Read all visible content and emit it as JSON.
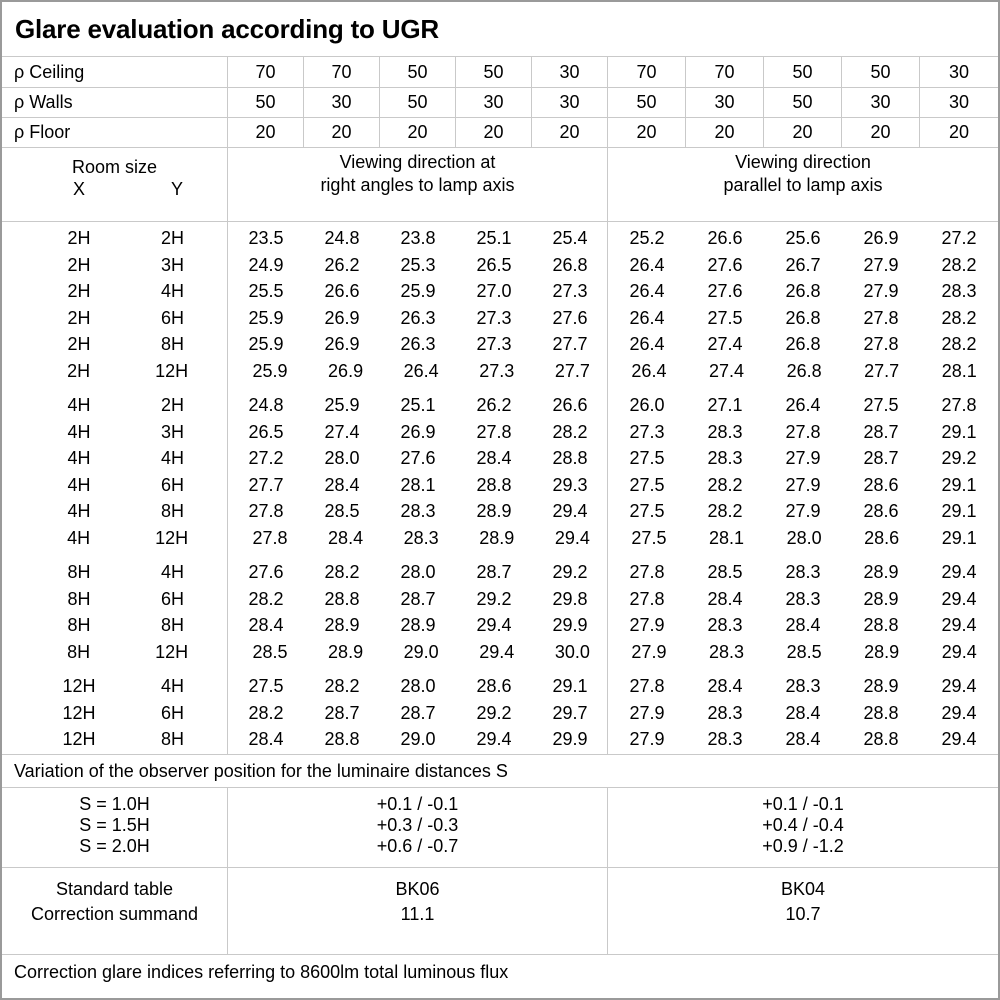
{
  "title": "Glare evaluation according to UGR",
  "reflectance": {
    "rows": [
      {
        "label": "ρ Ceiling",
        "values": [
          "70",
          "70",
          "50",
          "50",
          "30",
          "70",
          "70",
          "50",
          "50",
          "30"
        ]
      },
      {
        "label": "ρ Walls",
        "values": [
          "50",
          "30",
          "50",
          "30",
          "30",
          "50",
          "30",
          "50",
          "30",
          "30"
        ]
      },
      {
        "label": "ρ Floor",
        "values": [
          "20",
          "20",
          "20",
          "20",
          "20",
          "20",
          "20",
          "20",
          "20",
          "20"
        ]
      }
    ]
  },
  "room_header": {
    "room_size": "Room size",
    "x": "X",
    "y": "Y",
    "left_title_line1": "Viewing direction at",
    "left_title_line2": "right angles to lamp axis",
    "right_title_line1": "Viewing direction",
    "right_title_line2": "parallel to lamp axis"
  },
  "ugr_blocks": [
    {
      "rows": [
        {
          "x": "2H",
          "y": "2H",
          "left": [
            "23.5",
            "24.8",
            "23.8",
            "25.1",
            "25.4"
          ],
          "right": [
            "25.2",
            "26.6",
            "25.6",
            "26.9",
            "27.2"
          ]
        },
        {
          "x": "2H",
          "y": "3H",
          "left": [
            "24.9",
            "26.2",
            "25.3",
            "26.5",
            "26.8"
          ],
          "right": [
            "26.4",
            "27.6",
            "26.7",
            "27.9",
            "28.2"
          ]
        },
        {
          "x": "2H",
          "y": "4H",
          "left": [
            "25.5",
            "26.6",
            "25.9",
            "27.0",
            "27.3"
          ],
          "right": [
            "26.4",
            "27.6",
            "26.8",
            "27.9",
            "28.3"
          ]
        },
        {
          "x": "2H",
          "y": "6H",
          "left": [
            "25.9",
            "26.9",
            "26.3",
            "27.3",
            "27.6"
          ],
          "right": [
            "26.4",
            "27.5",
            "26.8",
            "27.8",
            "28.2"
          ]
        },
        {
          "x": "2H",
          "y": "8H",
          "left": [
            "25.9",
            "26.9",
            "26.3",
            "27.3",
            "27.7"
          ],
          "right": [
            "26.4",
            "27.4",
            "26.8",
            "27.8",
            "28.2"
          ]
        },
        {
          "x": "2H",
          "y": "12H",
          "left": [
            "25.9",
            "26.9",
            "26.4",
            "27.3",
            "27.7"
          ],
          "right": [
            "26.4",
            "27.4",
            "26.8",
            "27.7",
            "28.1"
          ]
        }
      ]
    },
    {
      "rows": [
        {
          "x": "4H",
          "y": "2H",
          "left": [
            "24.8",
            "25.9",
            "25.1",
            "26.2",
            "26.6"
          ],
          "right": [
            "26.0",
            "27.1",
            "26.4",
            "27.5",
            "27.8"
          ]
        },
        {
          "x": "4H",
          "y": "3H",
          "left": [
            "26.5",
            "27.4",
            "26.9",
            "27.8",
            "28.2"
          ],
          "right": [
            "27.3",
            "28.3",
            "27.8",
            "28.7",
            "29.1"
          ]
        },
        {
          "x": "4H",
          "y": "4H",
          "left": [
            "27.2",
            "28.0",
            "27.6",
            "28.4",
            "28.8"
          ],
          "right": [
            "27.5",
            "28.3",
            "27.9",
            "28.7",
            "29.2"
          ]
        },
        {
          "x": "4H",
          "y": "6H",
          "left": [
            "27.7",
            "28.4",
            "28.1",
            "28.8",
            "29.3"
          ],
          "right": [
            "27.5",
            "28.2",
            "27.9",
            "28.6",
            "29.1"
          ]
        },
        {
          "x": "4H",
          "y": "8H",
          "left": [
            "27.8",
            "28.5",
            "28.3",
            "28.9",
            "29.4"
          ],
          "right": [
            "27.5",
            "28.2",
            "27.9",
            "28.6",
            "29.1"
          ]
        },
        {
          "x": "4H",
          "y": "12H",
          "left": [
            "27.8",
            "28.4",
            "28.3",
            "28.9",
            "29.4"
          ],
          "right": [
            "27.5",
            "28.1",
            "28.0",
            "28.6",
            "29.1"
          ]
        }
      ]
    },
    {
      "rows": [
        {
          "x": "8H",
          "y": "4H",
          "left": [
            "27.6",
            "28.2",
            "28.0",
            "28.7",
            "29.2"
          ],
          "right": [
            "27.8",
            "28.5",
            "28.3",
            "28.9",
            "29.4"
          ]
        },
        {
          "x": "8H",
          "y": "6H",
          "left": [
            "28.2",
            "28.8",
            "28.7",
            "29.2",
            "29.8"
          ],
          "right": [
            "27.8",
            "28.4",
            "28.3",
            "28.9",
            "29.4"
          ]
        },
        {
          "x": "8H",
          "y": "8H",
          "left": [
            "28.4",
            "28.9",
            "28.9",
            "29.4",
            "29.9"
          ],
          "right": [
            "27.9",
            "28.3",
            "28.4",
            "28.8",
            "29.4"
          ]
        },
        {
          "x": "8H",
          "y": "12H",
          "left": [
            "28.5",
            "28.9",
            "29.0",
            "29.4",
            "30.0"
          ],
          "right": [
            "27.9",
            "28.3",
            "28.5",
            "28.9",
            "29.4"
          ]
        }
      ]
    },
    {
      "rows": [
        {
          "x": "12H",
          "y": "4H",
          "left": [
            "27.5",
            "28.2",
            "28.0",
            "28.6",
            "29.1"
          ],
          "right": [
            "27.8",
            "28.4",
            "28.3",
            "28.9",
            "29.4"
          ]
        },
        {
          "x": "12H",
          "y": "6H",
          "left": [
            "28.2",
            "28.7",
            "28.7",
            "29.2",
            "29.7"
          ],
          "right": [
            "27.9",
            "28.3",
            "28.4",
            "28.8",
            "29.4"
          ]
        },
        {
          "x": "12H",
          "y": "8H",
          "left": [
            "28.4",
            "28.8",
            "29.0",
            "29.4",
            "29.9"
          ],
          "right": [
            "27.9",
            "28.3",
            "28.4",
            "28.8",
            "29.4"
          ]
        }
      ]
    }
  ],
  "variation": {
    "note": "Variation of the observer position for the luminaire distances S",
    "rows": [
      {
        "s": "S = 1.0H",
        "left": "+0.1 / -0.1",
        "right": "+0.1 / -0.1"
      },
      {
        "s": "S = 1.5H",
        "left": "+0.3 / -0.3",
        "right": "+0.4 / -0.4"
      },
      {
        "s": "S = 2.0H",
        "left": "+0.6 / -0.7",
        "right": "+0.9 / -1.2"
      }
    ]
  },
  "standard": {
    "labels": [
      "Standard table",
      "Correction summand"
    ],
    "left": [
      "BK06",
      "11.1"
    ],
    "right": [
      "BK04",
      "10.7"
    ]
  },
  "footer_note": "Correction glare indices referring to 8600lm total luminous flux",
  "colors": {
    "grid": "#c9c9c9",
    "outer_border": "#9a9a9a",
    "text": "#000000",
    "background": "#ffffff"
  }
}
